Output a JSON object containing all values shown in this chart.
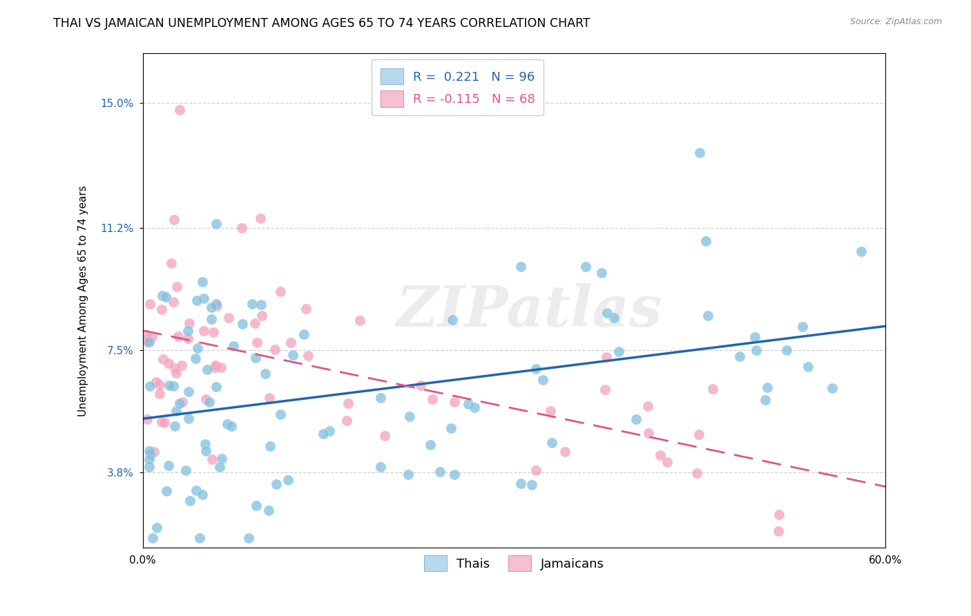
{
  "title": "THAI VS JAMAICAN UNEMPLOYMENT AMONG AGES 65 TO 74 YEARS CORRELATION CHART",
  "source": "Source: ZipAtlas.com",
  "ylabel": "Unemployment Among Ages 65 to 74 years",
  "ytick_labels": [
    "3.8%",
    "7.5%",
    "11.2%",
    "15.0%"
  ],
  "ytick_values": [
    3.8,
    7.5,
    11.2,
    15.0
  ],
  "xlim": [
    0.0,
    60.0
  ],
  "ylim": [
    1.5,
    16.5
  ],
  "thai_color": "#7fbfdf",
  "jamaican_color": "#f4a0bc",
  "thai_line_color": "#2166ac",
  "jamaican_line_color": "#e05580",
  "legend_box_color_thai": "#b8d8ed",
  "legend_box_color_jamaican": "#f7c0d0",
  "R_thai": 0.221,
  "N_thai": 96,
  "R_jamaican": -0.115,
  "N_jamaican": 68,
  "background_color": "#ffffff",
  "grid_color": "#d0d0d0",
  "title_fontsize": 12.5,
  "axis_label_fontsize": 11,
  "tick_fontsize": 11,
  "legend_fontsize": 13,
  "thai_intercept": 5.0,
  "thai_slope": 0.042,
  "jamaican_intercept": 7.8,
  "jamaican_slope": -0.068
}
